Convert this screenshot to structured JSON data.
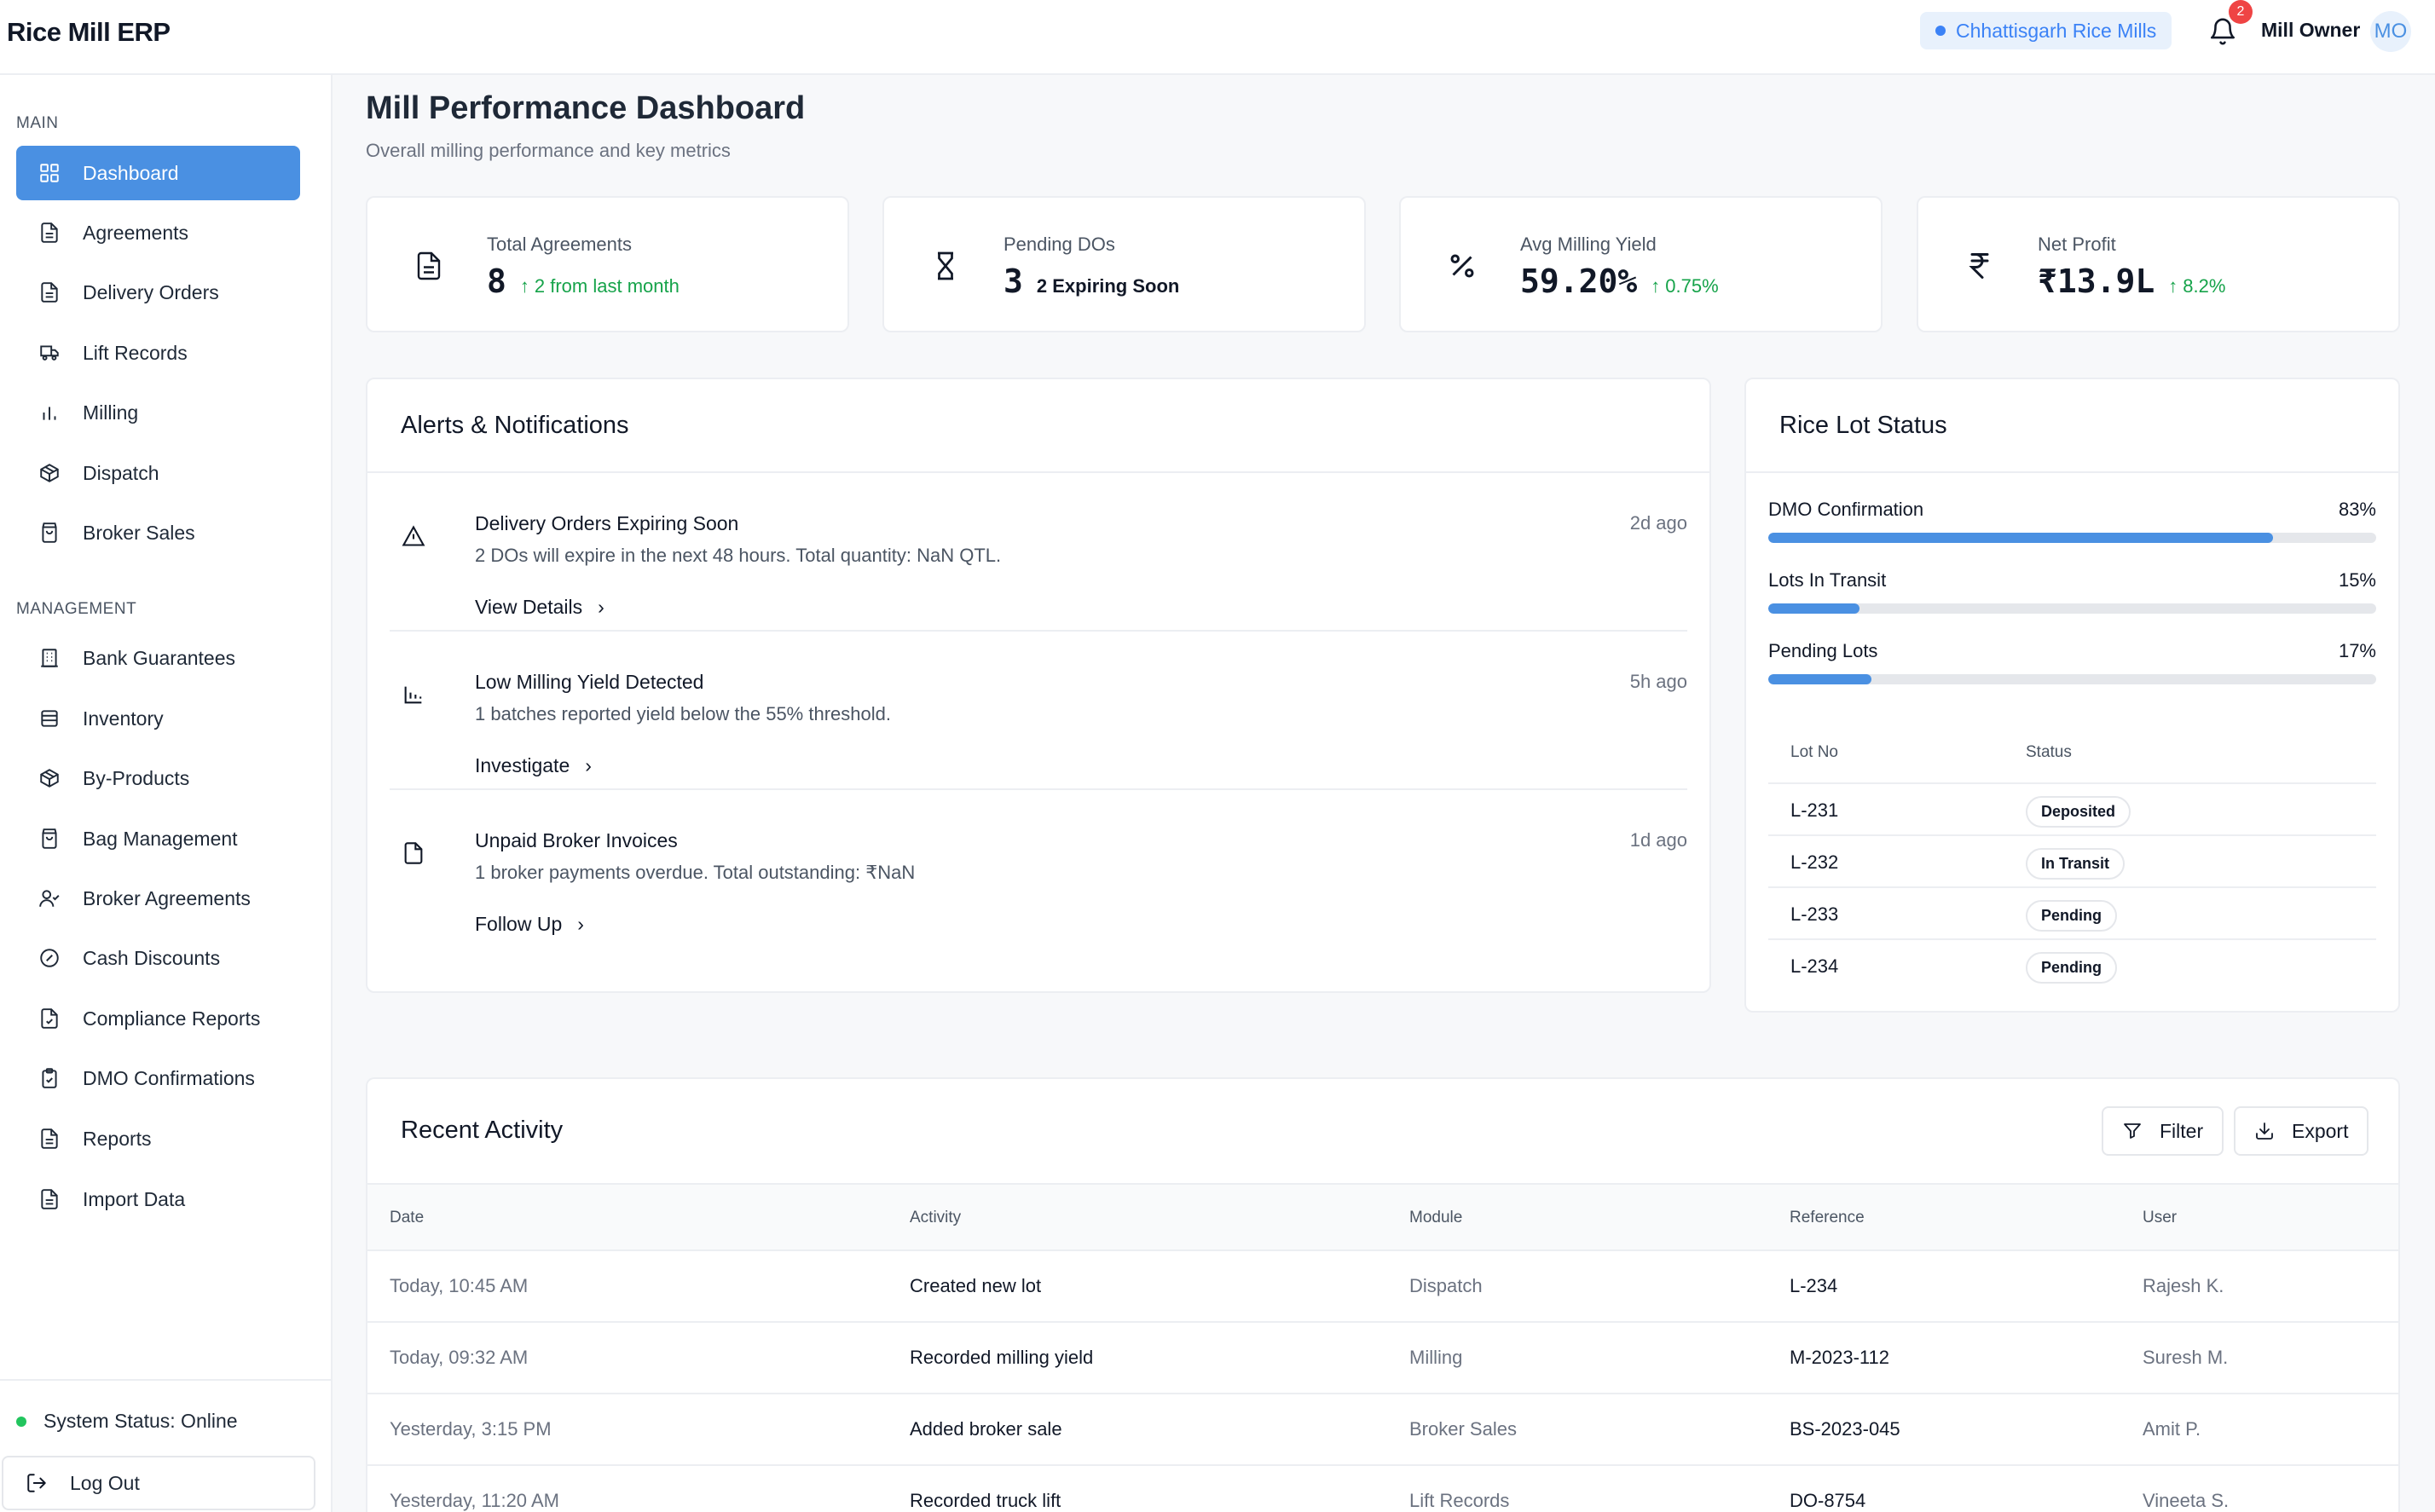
{
  "app": {
    "brand": "Rice Mill ERP",
    "mill_name": "Chhattisgarh Rice Mills",
    "notification_count": "2",
    "user_name": "Mill Owner",
    "user_initials": "MO"
  },
  "sidebar": {
    "main_title": "MAIN",
    "main_items": [
      {
        "label": "Dashboard",
        "icon": "grid-icon",
        "active": true
      },
      {
        "label": "Agreements",
        "icon": "document-icon"
      },
      {
        "label": "Delivery Orders",
        "icon": "document-icon"
      },
      {
        "label": "Lift Records",
        "icon": "truck-icon"
      },
      {
        "label": "Milling",
        "icon": "bar-chart-icon"
      },
      {
        "label": "Dispatch",
        "icon": "package-icon"
      },
      {
        "label": "Broker Sales",
        "icon": "shopping-bag-icon"
      }
    ],
    "management_title": "MANAGEMENT",
    "management_items": [
      {
        "label": "Bank Guarantees",
        "icon": "building-icon"
      },
      {
        "label": "Inventory",
        "icon": "database-icon"
      },
      {
        "label": "By-Products",
        "icon": "package-icon"
      },
      {
        "label": "Bag Management",
        "icon": "shopping-bag-icon"
      },
      {
        "label": "Broker Agreements",
        "icon": "user-check-icon"
      },
      {
        "label": "Cash Discounts",
        "icon": "percent-circle-icon"
      },
      {
        "label": "Compliance Reports",
        "icon": "file-check-icon"
      },
      {
        "label": "DMO Confirmations",
        "icon": "clipboard-check-icon"
      },
      {
        "label": "Reports",
        "icon": "file-text-icon"
      },
      {
        "label": "Import Data",
        "icon": "file-text-icon"
      }
    ],
    "system_status": "System Status: Online",
    "logout": "Log Out"
  },
  "header": {
    "title": "Mill Performance Dashboard",
    "subtitle": "Overall milling performance and key metrics"
  },
  "stats": [
    {
      "label": "Total Agreements",
      "value": "8",
      "change": "2 from last month",
      "trend": "up",
      "icon": "document-icon"
    },
    {
      "label": "Pending DOs",
      "value": "3",
      "change": "2 Expiring Soon",
      "trend": "none",
      "icon": "hourglass-icon"
    },
    {
      "label": "Avg Milling Yield",
      "value": "59.20%",
      "change": "0.75%",
      "trend": "up",
      "icon": "percent-icon"
    },
    {
      "label": "Net Profit",
      "value": "₹13.9L",
      "change": "8.2%",
      "trend": "up",
      "icon": "rupee-icon"
    }
  ],
  "alerts": {
    "title": "Alerts & Notifications",
    "items": [
      {
        "title": "Delivery Orders Expiring Soon",
        "desc": "2 DOs will expire in the next 48 hours. Total quantity: NaN QTL.",
        "time": "2d ago",
        "action": "View Details",
        "icon": "warning-icon"
      },
      {
        "title": "Low Milling Yield Detected",
        "desc": "1 batches reported yield below the 55% threshold.",
        "time": "5h ago",
        "action": "Investigate",
        "icon": "bar-chart-icon"
      },
      {
        "title": "Unpaid Broker Invoices",
        "desc": "1 broker payments overdue. Total outstanding: ₹NaN",
        "time": "1d ago",
        "action": "Follow Up",
        "icon": "document-icon"
      }
    ]
  },
  "lot_status": {
    "title": "Rice Lot Status",
    "progress": [
      {
        "label": "DMO Confirmation",
        "pct_label": "83%",
        "value": 83
      },
      {
        "label": "Lots In Transit",
        "pct_label": "15%",
        "value": 15
      },
      {
        "label": "Pending Lots",
        "pct_label": "17%",
        "value": 17
      }
    ],
    "columns": [
      "Lot No",
      "Status"
    ],
    "rows": [
      {
        "lot": "L-231",
        "status": "Deposited"
      },
      {
        "lot": "L-232",
        "status": "In Transit"
      },
      {
        "lot": "L-233",
        "status": "Pending"
      },
      {
        "lot": "L-234",
        "status": "Pending"
      }
    ]
  },
  "activity": {
    "title": "Recent Activity",
    "filter_label": "Filter",
    "export_label": "Export",
    "columns": [
      "Date",
      "Activity",
      "Module",
      "Reference",
      "User"
    ],
    "rows": [
      {
        "date": "Today, 10:45 AM",
        "activity": "Created new lot",
        "module": "Dispatch",
        "reference": "L-234",
        "user": "Rajesh K."
      },
      {
        "date": "Today, 09:32 AM",
        "activity": "Recorded milling yield",
        "module": "Milling",
        "reference": "M-2023-112",
        "user": "Suresh M."
      },
      {
        "date": "Yesterday, 3:15 PM",
        "activity": "Added broker sale",
        "module": "Broker Sales",
        "reference": "BS-2023-045",
        "user": "Amit P."
      },
      {
        "date": "Yesterday, 11:20 AM",
        "activity": "Recorded truck lift",
        "module": "Lift Records",
        "reference": "DO-8754",
        "user": "Vineeta S."
      }
    ]
  },
  "colors": {
    "accent": "#4a90e2",
    "positive": "#16a34a",
    "danger": "#ef4444",
    "online": "#22c55e"
  }
}
